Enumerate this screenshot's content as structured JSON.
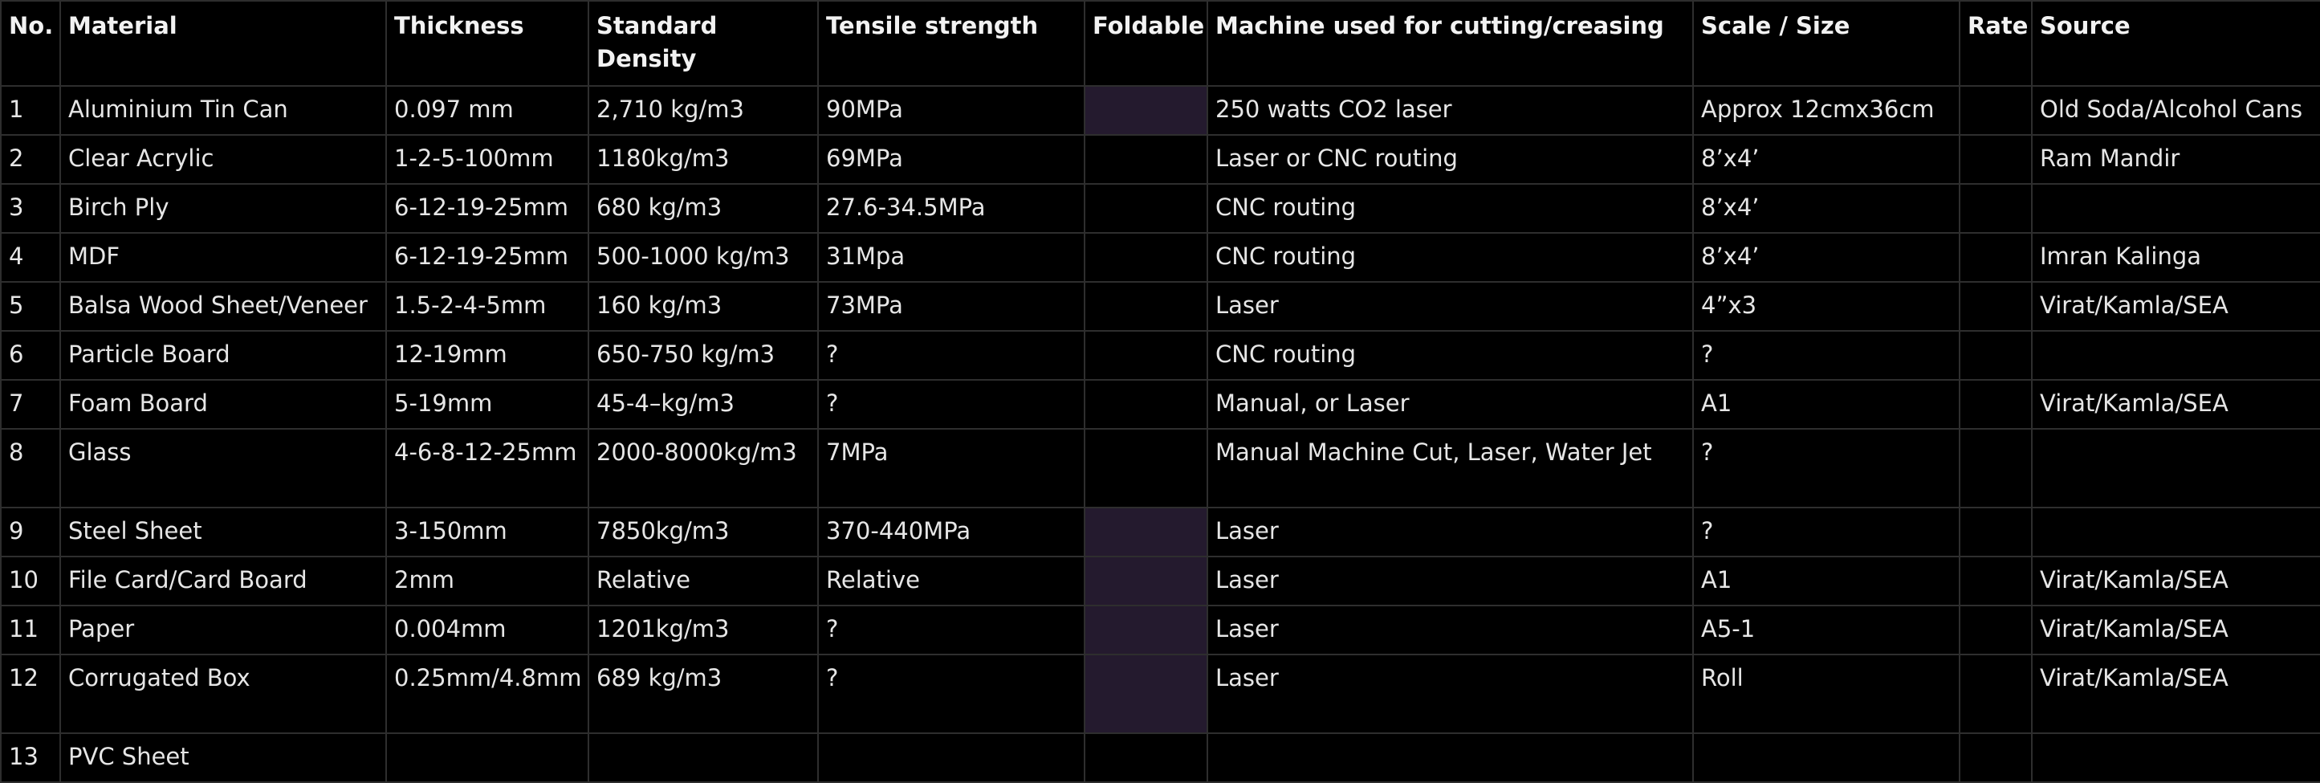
{
  "table": {
    "headers": [
      "No.",
      "Material",
      "Thickness",
      "Standard Density",
      "Tensile strength",
      "Foldable",
      "Machine used for cutting/creasing",
      "Scale / Size",
      "Rate",
      "Source"
    ],
    "rows": [
      {
        "no": "1",
        "material": "Aluminium Tin Can",
        "thickness": "0.097 mm",
        "density": "2,710 kg/m3",
        "tensile": "90MPa",
        "foldable": true,
        "machine": "250 watts CO2 laser",
        "scale": "Approx 12cmx36cm",
        "rate": "",
        "source": "Old Soda/Alcohol Cans"
      },
      {
        "no": "2",
        "material": "Clear Acrylic",
        "thickness": "1-2-5-100mm",
        "density": "1180kg/m3",
        "tensile": "69MPa",
        "foldable": false,
        "machine": "Laser or CNC routing",
        "scale": "8’x4’",
        "rate": "",
        "source": "Ram Mandir"
      },
      {
        "no": "3",
        "material": "Birch Ply",
        "thickness": "6-12-19-25mm",
        "density": "680 kg/m3",
        "tensile": "27.6-34.5MPa",
        "foldable": false,
        "machine": "CNC routing",
        "scale": "8’x4’",
        "rate": "",
        "source": ""
      },
      {
        "no": "4",
        "material": "MDF",
        "thickness": "6-12-19-25mm",
        "density": "500-1000 kg/m3",
        "tensile": "31Mpa",
        "foldable": false,
        "machine": "CNC routing",
        "scale": "8’x4’",
        "rate": "",
        "source": "Imran Kalinga"
      },
      {
        "no": "5",
        "material": "Balsa Wood Sheet/Veneer",
        "thickness": "1.5-2-4-5mm",
        "density": "160 kg/m3",
        "tensile": "73MPa",
        "foldable": false,
        "machine": "Laser",
        "scale": "4”x3",
        "rate": "",
        "source": "Virat/Kamla/SEA"
      },
      {
        "no": "6",
        "material": "Particle Board",
        "thickness": "12-19mm",
        "density": "650-750 kg/m3",
        "tensile": "?",
        "foldable": false,
        "machine": "CNC routing",
        "scale": "?",
        "rate": "",
        "source": ""
      },
      {
        "no": "7",
        "material": "Foam Board",
        "thickness": "5-19mm",
        "density": "45-4–kg/m3",
        "tensile": "?",
        "foldable": false,
        "machine": "Manual, or Laser",
        "scale": "A1",
        "rate": "",
        "source": "Virat/Kamla/SEA"
      },
      {
        "no": "8",
        "material": "Glass",
        "thickness": "4-6-8-12-25mm",
        "density": "2000-8000kg/m3",
        "tensile": "7MPa",
        "foldable": false,
        "machine": "Manual Machine Cut, Laser, Water Jet",
        "scale": "?",
        "rate": "",
        "source": ""
      },
      {
        "no": "9",
        "material": "Steel Sheet",
        "thickness": "3-150mm",
        "density": "7850kg/m3",
        "tensile": "370-440MPa",
        "foldable": true,
        "machine": "Laser",
        "scale": "?",
        "rate": "",
        "source": ""
      },
      {
        "no": "10",
        "material": "File Card/Card Board",
        "thickness": "2mm",
        "density": "Relative",
        "tensile": "Relative",
        "foldable": true,
        "machine": "Laser",
        "scale": "A1",
        "rate": "",
        "source": "Virat/Kamla/SEA"
      },
      {
        "no": "11",
        "material": "Paper",
        "thickness": "0.004mm",
        "density": "1201kg/m3",
        "tensile": "?",
        "foldable": true,
        "machine": "Laser",
        "scale": "A5-1",
        "rate": "",
        "source": "Virat/Kamla/SEA"
      },
      {
        "no": "12",
        "material": "Corrugated Box",
        "thickness": "0.25mm/4.8mm",
        "density": "689 kg/m3",
        "tensile": "?",
        "foldable": true,
        "machine": "Laser",
        "scale": "Roll",
        "rate": "",
        "source": "Virat/Kamla/SEA"
      },
      {
        "no": "13",
        "material": "PVC Sheet",
        "thickness": "",
        "density": "",
        "tensile": "",
        "foldable": false,
        "machine": "",
        "scale": "",
        "rate": "",
        "source": ""
      }
    ]
  },
  "colors": {
    "background": "#000000",
    "grid": "#2e2e2e",
    "text": "#e6e6e6",
    "foldable_fill": "#241a2e"
  }
}
